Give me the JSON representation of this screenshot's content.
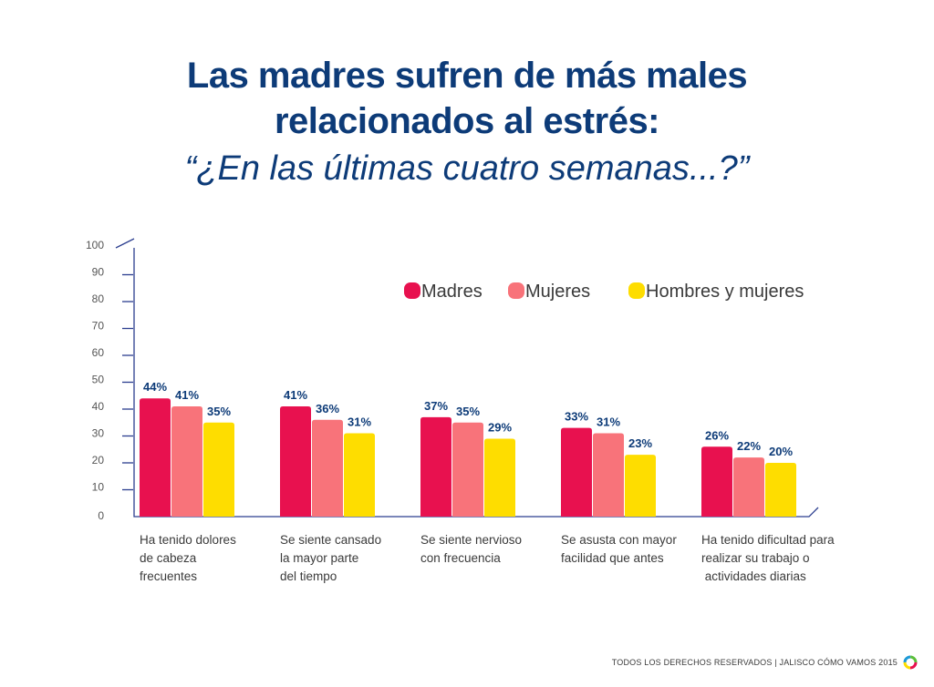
{
  "title_line1": "Las madres sufren de más males",
  "title_line2": "relacionados al estrés:",
  "subtitle": "“¿En las últimas cuatro semanas...?”",
  "footer": "TODOS LOS DERECHOS RESERVADOS  |  JALISCO CÓMO VAMOS 2015",
  "chart_data": {
    "type": "bar",
    "categories": [
      [
        "Ha tenido dolores",
        "de cabeza",
        "frecuentes"
      ],
      [
        "Se siente cansado",
        "la mayor parte",
        "del tiempo"
      ],
      [
        "Se siente nervioso",
        "con frecuencia"
      ],
      [
        "Se asusta con mayor",
        "facilidad que antes"
      ],
      [
        "Ha tenido dificultad para",
        "realizar su trabajo o",
        " actividades diarias"
      ]
    ],
    "series": [
      {
        "name": "Madres",
        "color": "#e8114f",
        "values": [
          44,
          41,
          37,
          33,
          26
        ],
        "labels": [
          "44%",
          "41%",
          "37%",
          "33%",
          "26%"
        ]
      },
      {
        "name": "Mujeres",
        "color": "#f8737a",
        "values": [
          41,
          36,
          35,
          31,
          22
        ],
        "labels": [
          "41%",
          "36%",
          "35%",
          "31%",
          "22%"
        ]
      },
      {
        "name": "Hombres y mujeres",
        "color": "#fedd00",
        "values": [
          35,
          31,
          29,
          23,
          20
        ],
        "labels": [
          "35%",
          "31%",
          "29%",
          "23%",
          "20%"
        ]
      }
    ],
    "yticks": [
      "0",
      "10",
      "20",
      "30",
      "40",
      "50",
      "60",
      "70",
      "80",
      "90",
      "100"
    ],
    "ylim": [
      0,
      100
    ],
    "legend_position": "top-right",
    "grid": false,
    "axis_color": "#2b3d8f",
    "label_color": "#0d3b78"
  }
}
